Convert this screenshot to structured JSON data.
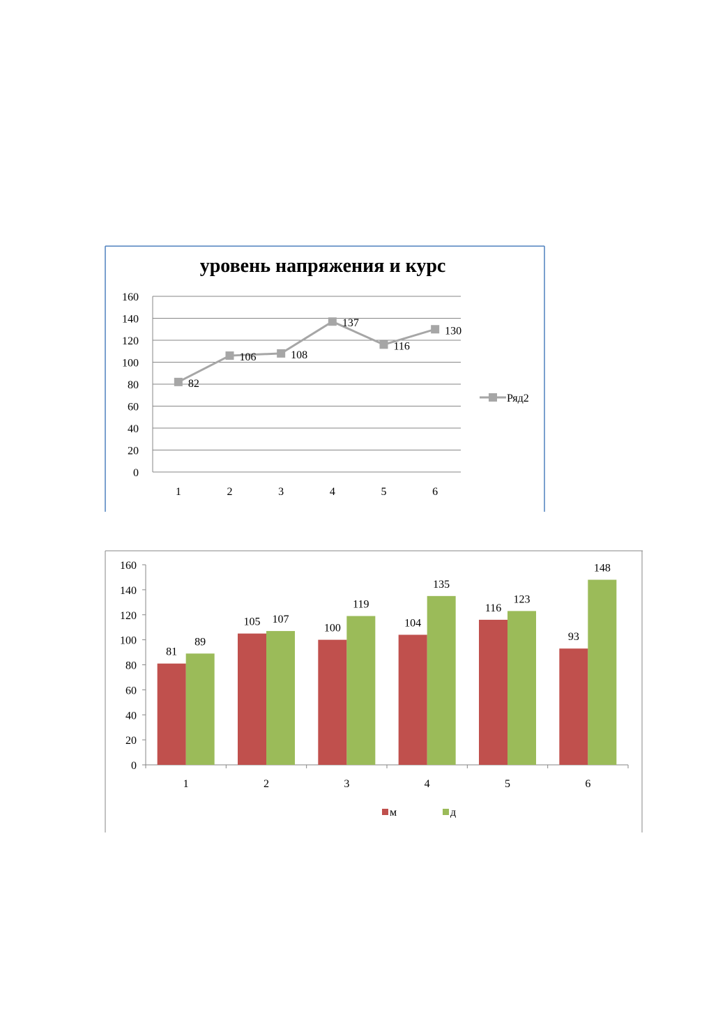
{
  "chart_data": [
    {
      "type": "line",
      "title": "уровень напряжения  и курс",
      "categories": [
        "1",
        "2",
        "3",
        "4",
        "5",
        "6"
      ],
      "series": [
        {
          "name": "Ряд2",
          "values": [
            82,
            106,
            108,
            137,
            116,
            130
          ]
        }
      ],
      "ylim": [
        0,
        160
      ],
      "yticks": [
        0,
        20,
        40,
        60,
        80,
        100,
        120,
        140,
        160
      ],
      "grid": true,
      "legend": "right",
      "colors": {
        "series": "#a6a6a6",
        "frame": "#4f81bd",
        "grid": "#868686"
      }
    },
    {
      "type": "bar",
      "categories": [
        "1",
        "2",
        "3",
        "4",
        "5",
        "6"
      ],
      "series": [
        {
          "name": "м",
          "values": [
            81,
            105,
            100,
            104,
            116,
            93
          ]
        },
        {
          "name": "д",
          "values": [
            89,
            107,
            119,
            135,
            123,
            148
          ]
        }
      ],
      "ylim": [
        0,
        160
      ],
      "yticks": [
        0,
        20,
        40,
        60,
        80,
        100,
        120,
        140,
        160
      ],
      "grid": false,
      "legend": "bottom",
      "colors": {
        "м": "#c0504d",
        "д": "#9bbb59",
        "frame": "#868686"
      }
    }
  ]
}
